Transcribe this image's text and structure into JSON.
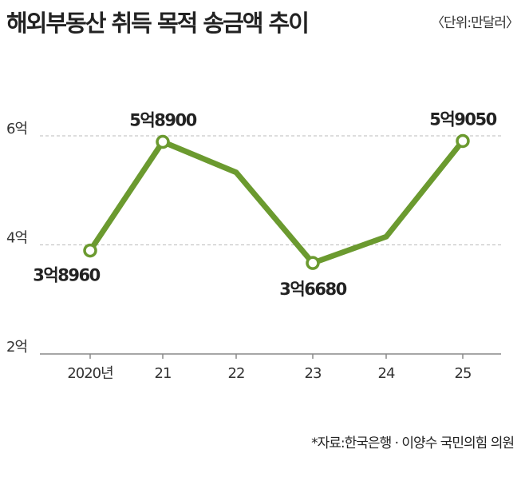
{
  "chart_data": {
    "type": "line",
    "title": "해외부동산 취득 목적 송금액 추이",
    "unit_label": "〈단위:만달러〉",
    "source": "*자료:한국은행 · 이양수 국민의힘 의원",
    "categories": [
      "2020년",
      "21",
      "22",
      "23",
      "24",
      "25"
    ],
    "series": [
      {
        "name": "송금액",
        "values": [
          38960,
          58900,
          53300,
          36680,
          41500,
          59050
        ]
      }
    ],
    "data_labels": [
      "3억8960",
      "5억8900",
      null,
      "3억6680",
      null,
      "5억9050"
    ],
    "y_ticks": [
      {
        "value": 20000,
        "label": "2억"
      },
      {
        "value": 40000,
        "label": "4억"
      },
      {
        "value": 60000,
        "label": "6억"
      }
    ],
    "ylim": [
      20000,
      66000
    ],
    "grid": true,
    "line_color": "#6b9a2f"
  }
}
